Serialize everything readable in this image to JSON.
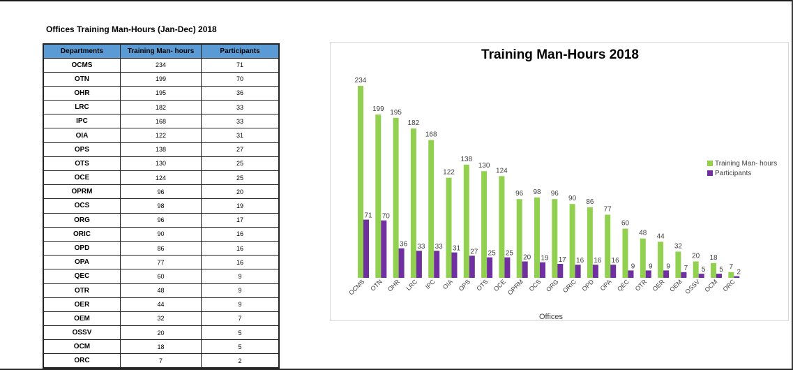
{
  "sheet": {
    "title": "Offices Training Man-Hours (Jan-Dec) 2018"
  },
  "table": {
    "headers": [
      "Departments",
      "Training Man- hours",
      "Participants"
    ],
    "rows": [
      [
        "OCMS",
        "234",
        "71"
      ],
      [
        "OTN",
        "199",
        "70"
      ],
      [
        "OHR",
        "195",
        "36"
      ],
      [
        "LRC",
        "182",
        "33"
      ],
      [
        "IPC",
        "168",
        "33"
      ],
      [
        "OIA",
        "122",
        "31"
      ],
      [
        "OPS",
        "138",
        "27"
      ],
      [
        "OTS",
        "130",
        "25"
      ],
      [
        "OCE",
        "124",
        "25"
      ],
      [
        "OPRM",
        "96",
        "20"
      ],
      [
        "OCS",
        "98",
        "19"
      ],
      [
        "ORG",
        "96",
        "17"
      ],
      [
        "ORIC",
        "90",
        "16"
      ],
      [
        "OPD",
        "86",
        "16"
      ],
      [
        "OPA",
        "77",
        "16"
      ],
      [
        "QEC",
        "60",
        "9"
      ],
      [
        "OTR",
        "48",
        "9"
      ],
      [
        "OER",
        "44",
        "9"
      ],
      [
        "OEM",
        "32",
        "7"
      ],
      [
        "OSSV",
        "20",
        "5"
      ],
      [
        "OCM",
        "18",
        "5"
      ],
      [
        "ORC",
        "7",
        "2"
      ]
    ]
  },
  "chart_data": {
    "type": "bar",
    "title": "Training Man-Hours 2018",
    "xlabel": "Offices",
    "ylabel": "",
    "ylim": [
      0,
      250
    ],
    "grid": false,
    "legend_position": "right",
    "categories": [
      "OCMS",
      "OTN",
      "OHR",
      "LRC",
      "IPC",
      "OIA",
      "OPS",
      "OTS",
      "OCE",
      "OPRM",
      "OCS",
      "ORG",
      "ORIC",
      "OPD",
      "OPA",
      "QEC",
      "OTR",
      "OER",
      "OEM",
      "OSSV",
      "OCM",
      "ORC"
    ],
    "series": [
      {
        "name": "Training Man- hours",
        "color": "#92d050",
        "values": [
          234,
          199,
          195,
          182,
          168,
          122,
          138,
          130,
          124,
          96,
          98,
          96,
          90,
          86,
          77,
          60,
          48,
          44,
          32,
          20,
          18,
          7
        ]
      },
      {
        "name": "Participants",
        "color": "#7030a0",
        "values": [
          71,
          70,
          36,
          33,
          33,
          31,
          27,
          25,
          25,
          20,
          19,
          17,
          16,
          16,
          16,
          9,
          9,
          9,
          7,
          5,
          5,
          2
        ]
      }
    ]
  }
}
